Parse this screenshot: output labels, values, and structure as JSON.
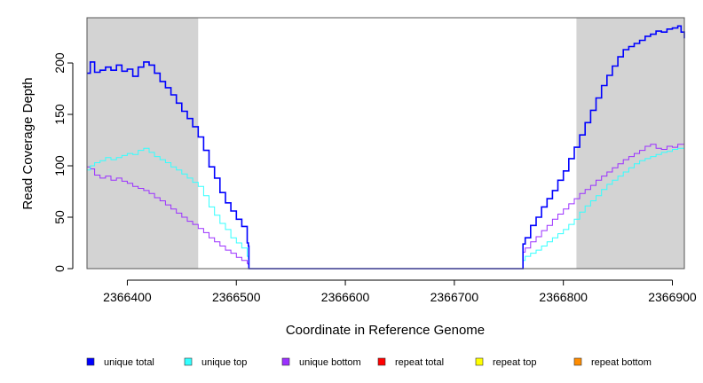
{
  "chart_data": {
    "type": "line",
    "title": "",
    "xlabel": "Coordinate in Reference Genome",
    "ylabel": "Read Coverage Depth",
    "xlim": [
      2366363,
      2366911
    ],
    "ylim": [
      0,
      244
    ],
    "x_ticks": [
      2366400,
      2366500,
      2366600,
      2366700,
      2366800,
      2366900
    ],
    "x_tick_labels": [
      "2366400",
      "2366500",
      "2366600",
      "2366700",
      "2366800",
      "2366900"
    ],
    "y_ticks": [
      0,
      50,
      100,
      150,
      200
    ],
    "y_tick_labels": [
      "0",
      "50",
      "100",
      "150",
      "200"
    ],
    "grid": false,
    "legend_position": "bottom",
    "shaded_regions": [
      {
        "x0": 2366363,
        "x1": 2366465,
        "color": "#d3d3d3"
      },
      {
        "x0": 2366812,
        "x1": 2366911,
        "color": "#d3d3d3"
      }
    ],
    "series": [
      {
        "name": "unique total",
        "color": "#0000ff",
        "width": 1.6,
        "x": [
          2366363,
          2366366,
          2366370,
          2366375,
          2366380,
          2366385,
          2366390,
          2366395,
          2366400,
          2366405,
          2366410,
          2366415,
          2366420,
          2366425,
          2366430,
          2366435,
          2366440,
          2366445,
          2366450,
          2366455,
          2366460,
          2366465,
          2366470,
          2366475,
          2366480,
          2366485,
          2366490,
          2366495,
          2366500,
          2366505,
          2366510,
          2366511,
          2366511.5,
          2366762,
          2366763,
          2366765,
          2366770,
          2366775,
          2366780,
          2366785,
          2366790,
          2366795,
          2366800,
          2366805,
          2366810,
          2366815,
          2366820,
          2366825,
          2366830,
          2366835,
          2366840,
          2366845,
          2366850,
          2366855,
          2366860,
          2366865,
          2366870,
          2366875,
          2366880,
          2366885,
          2366890,
          2366895,
          2366900,
          2366905,
          2366908,
          2366911
        ],
        "y": [
          190,
          201,
          191,
          193,
          196,
          193,
          198,
          192,
          194,
          187,
          196,
          201,
          198,
          190,
          182,
          176,
          169,
          161,
          153,
          146,
          138,
          128,
          115,
          99,
          88,
          74,
          64,
          56,
          48,
          41,
          25,
          22,
          0,
          0,
          24,
          30,
          42,
          50,
          60,
          68,
          76,
          86,
          95,
          107,
          118,
          130,
          142,
          154,
          166,
          178,
          188,
          197,
          206,
          213,
          216,
          219,
          222,
          226,
          228,
          231,
          230,
          233,
          234,
          236,
          230,
          224
        ]
      },
      {
        "name": "unique top",
        "color": "#33ffff",
        "width": 1,
        "x": [
          2366363,
          2366366,
          2366370,
          2366375,
          2366380,
          2366385,
          2366390,
          2366395,
          2366400,
          2366405,
          2366410,
          2366415,
          2366420,
          2366425,
          2366430,
          2366435,
          2366440,
          2366445,
          2366450,
          2366455,
          2366460,
          2366465,
          2366470,
          2366475,
          2366480,
          2366485,
          2366490,
          2366495,
          2366500,
          2366505,
          2366510,
          2366511,
          2366511.5,
          2366762,
          2366763,
          2366765,
          2366770,
          2366775,
          2366780,
          2366785,
          2366790,
          2366795,
          2366800,
          2366805,
          2366810,
          2366815,
          2366820,
          2366825,
          2366830,
          2366835,
          2366840,
          2366845,
          2366850,
          2366855,
          2366860,
          2366865,
          2366870,
          2366875,
          2366880,
          2366885,
          2366890,
          2366895,
          2366900,
          2366905,
          2366911
        ],
        "y": [
          96,
          100,
          103,
          105,
          108,
          106,
          108,
          110,
          112,
          111,
          115,
          117,
          113,
          109,
          106,
          103,
          99,
          96,
          92,
          88,
          84,
          80,
          71,
          60,
          52,
          44,
          38,
          30,
          25,
          20,
          12,
          10,
          0,
          0,
          8,
          12,
          15,
          18,
          22,
          26,
          30,
          34,
          38,
          43,
          48,
          55,
          61,
          66,
          71,
          77,
          82,
          86,
          90,
          94,
          98,
          102,
          105,
          107,
          109,
          111,
          113,
          114,
          116,
          117,
          115
        ]
      },
      {
        "name": "unique bottom",
        "color": "#9b30ff",
        "width": 1,
        "x": [
          2366363,
          2366366,
          2366370,
          2366375,
          2366380,
          2366385,
          2366390,
          2366395,
          2366400,
          2366405,
          2366410,
          2366415,
          2366420,
          2366425,
          2366430,
          2366435,
          2366440,
          2366445,
          2366450,
          2366455,
          2366460,
          2366465,
          2366470,
          2366475,
          2366480,
          2366485,
          2366490,
          2366495,
          2366500,
          2366505,
          2366510,
          2366511,
          2366511.5,
          2366762,
          2366763,
          2366765,
          2366770,
          2366775,
          2366780,
          2366785,
          2366790,
          2366795,
          2366800,
          2366805,
          2366810,
          2366815,
          2366820,
          2366825,
          2366830,
          2366835,
          2366840,
          2366845,
          2366850,
          2366855,
          2366860,
          2366865,
          2366870,
          2366875,
          2366880,
          2366885,
          2366890,
          2366895,
          2366900,
          2366905,
          2366911
        ],
        "y": [
          99,
          97,
          91,
          88,
          90,
          86,
          88,
          85,
          83,
          80,
          78,
          76,
          73,
          69,
          66,
          62,
          58,
          54,
          50,
          46,
          43,
          39,
          35,
          30,
          26,
          22,
          18,
          15,
          11,
          8,
          5,
          4,
          0,
          0,
          16,
          20,
          26,
          31,
          37,
          42,
          48,
          53,
          58,
          63,
          68,
          73,
          77,
          81,
          86,
          90,
          94,
          98,
          102,
          106,
          109,
          112,
          115,
          119,
          121,
          117,
          116,
          119,
          118,
          121,
          113
        ]
      },
      {
        "name": "repeat total",
        "color": "#ff0000",
        "width": 1,
        "x": [
          2366363,
          2366911
        ],
        "y": [
          0,
          0
        ]
      },
      {
        "name": "repeat top",
        "color": "#ffff00",
        "width": 1,
        "x": [
          2366363,
          2366911
        ],
        "y": [
          0,
          0
        ]
      },
      {
        "name": "repeat bottom",
        "color": "#ff8c00",
        "width": 1,
        "x": [
          2366363,
          2366911
        ],
        "y": [
          0,
          0
        ]
      }
    ]
  }
}
